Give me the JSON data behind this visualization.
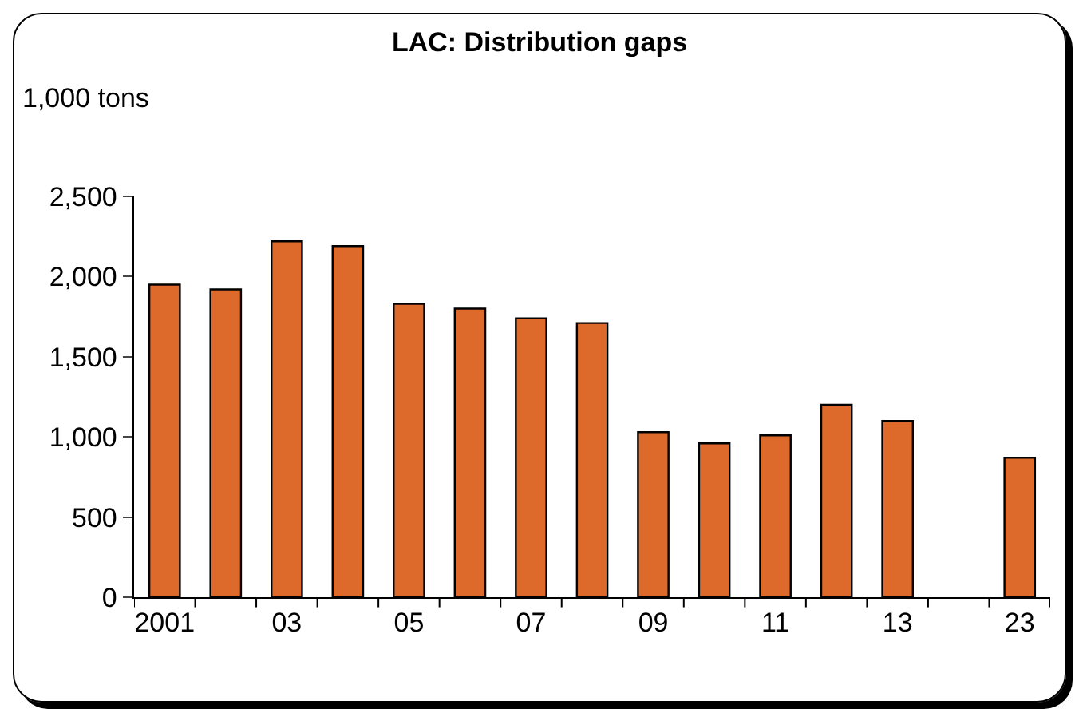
{
  "chart_data": {
    "type": "bar",
    "title": "LAC: Distribution gaps",
    "ylabel": "1,000 tons",
    "categories": [
      "2001",
      null,
      "03",
      null,
      "05",
      null,
      "07",
      null,
      "09",
      null,
      "11",
      null,
      "13",
      null,
      "23"
    ],
    "values": [
      1950,
      1920,
      2220,
      2190,
      1830,
      1800,
      1740,
      1710,
      1030,
      960,
      1010,
      1200,
      1100,
      null,
      870
    ],
    "color": "#dd6a2a",
    "ylim": [
      0,
      2500
    ],
    "yticks": [
      0,
      500,
      {
        "value": 1000,
        "label": "1,000"
      },
      {
        "value": 1500,
        "label": "1,500"
      },
      {
        "value": 2000,
        "label": "2,000"
      },
      {
        "value": 2500,
        "label": "2,500"
      }
    ],
    "grid": false
  }
}
